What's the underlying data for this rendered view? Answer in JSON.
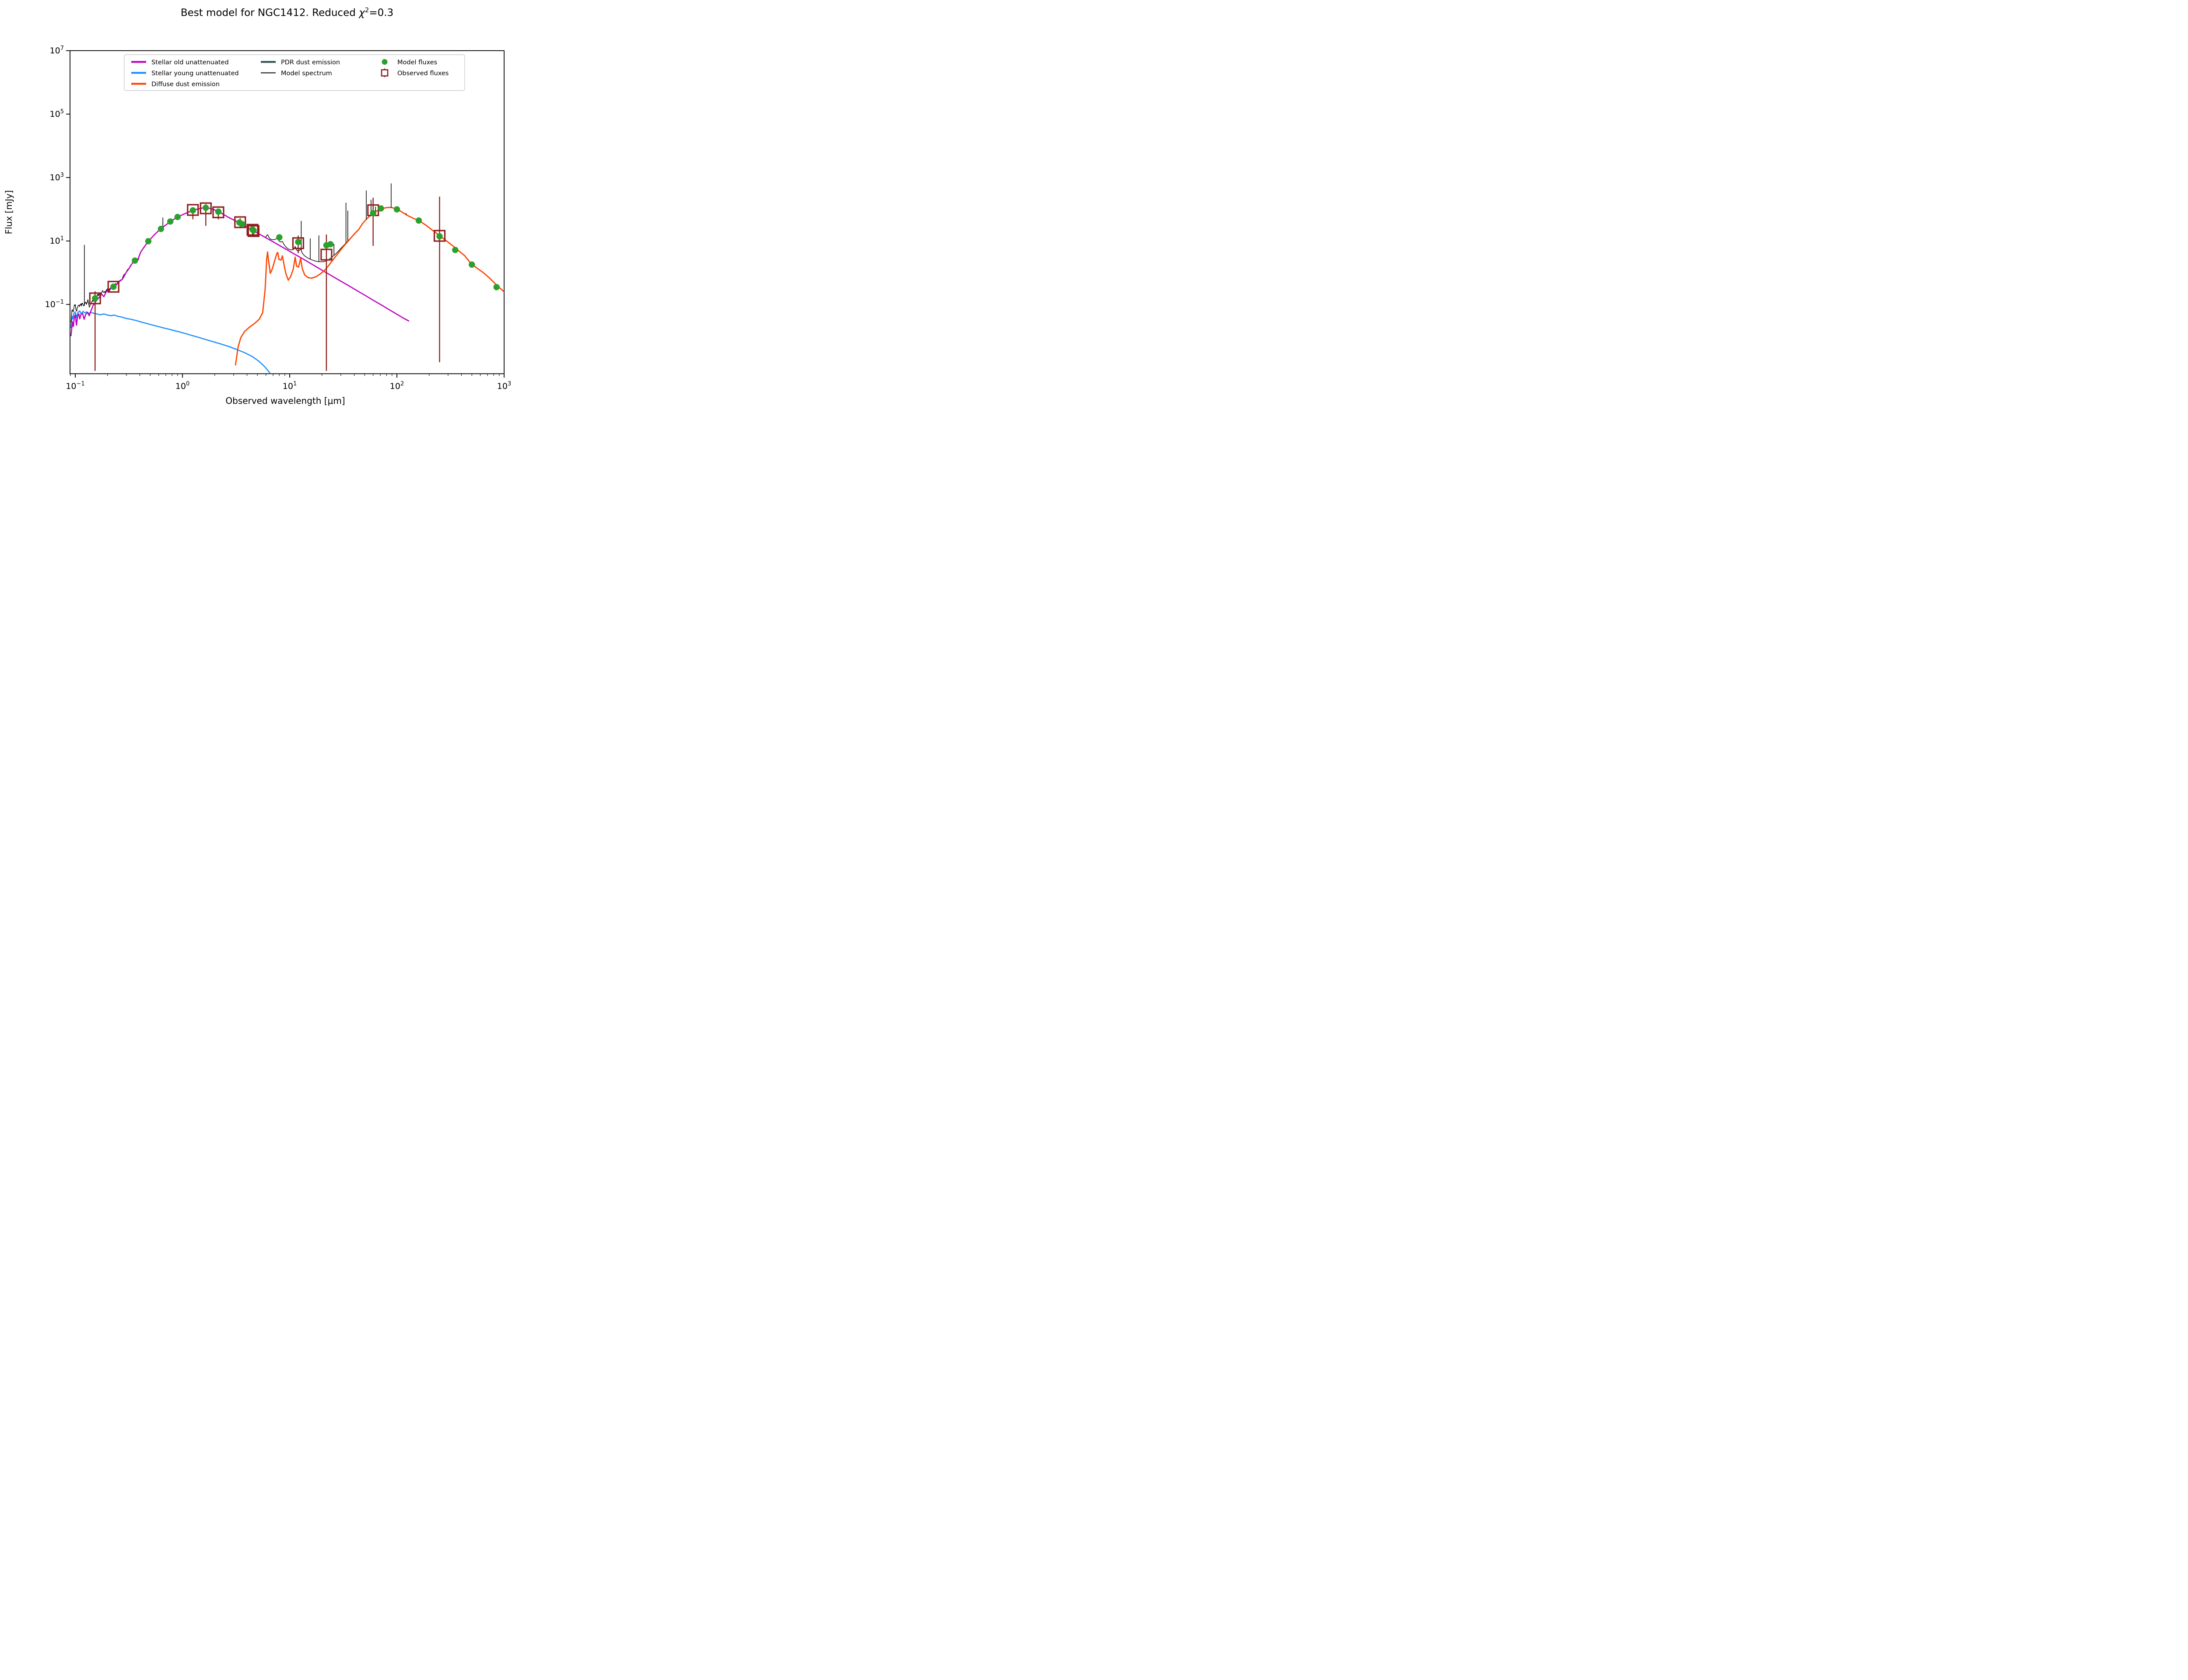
{
  "figure": {
    "title_prefix": "Best model for NGC1412. Reduced ",
    "chi": "χ",
    "chi_sup": "2",
    "title_suffix": "=0.3"
  },
  "chart_data": {
    "type": "line",
    "title": "Best model for NGC1412. Reduced χ²=0.3",
    "xlabel": "Observed wavelength [μm]",
    "ylabel": "Flux [mJy]",
    "xscale": "log",
    "yscale": "log",
    "xlim": [
      0.0893,
      1000
    ],
    "ylim": [
      0.00065,
      10000000
    ],
    "x_tick_exponents": [
      -1,
      0,
      1,
      2,
      3
    ],
    "y_tick_exponents": [
      7,
      5,
      3,
      1,
      -1
    ],
    "grid": false,
    "legend_position": "upper left inside",
    "series": [
      {
        "name": "Stellar old unattenuated",
        "color": "#bf00bf",
        "points": [
          [
            0.0912,
            0.01
          ],
          [
            0.094,
            0.028
          ],
          [
            0.096,
            0.02
          ],
          [
            0.098,
            0.04
          ],
          [
            0.1,
            0.047
          ],
          [
            0.1026,
            0.022
          ],
          [
            0.105,
            0.042
          ],
          [
            0.108,
            0.05
          ],
          [
            0.11,
            0.035
          ],
          [
            0.113,
            0.048
          ],
          [
            0.117,
            0.052
          ],
          [
            0.121,
            0.034
          ],
          [
            0.125,
            0.048
          ],
          [
            0.13,
            0.056
          ],
          [
            0.135,
            0.044
          ],
          [
            0.14,
            0.062
          ],
          [
            0.146,
            0.09
          ],
          [
            0.153,
            0.115
          ],
          [
            0.16,
            0.14
          ],
          [
            0.168,
            0.17
          ],
          [
            0.176,
            0.21
          ],
          [
            0.185,
            0.175
          ],
          [
            0.193,
            0.24
          ],
          [
            0.2,
            0.28
          ],
          [
            0.206,
            0.25
          ],
          [
            0.213,
            0.31
          ],
          [
            0.22,
            0.335
          ],
          [
            0.228,
            0.3
          ],
          [
            0.235,
            0.38
          ],
          [
            0.245,
            0.44
          ],
          [
            0.26,
            0.54
          ],
          [
            0.275,
            0.62
          ],
          [
            0.29,
            0.85
          ],
          [
            0.3,
            1.05
          ],
          [
            0.315,
            1.3
          ],
          [
            0.33,
            1.7
          ],
          [
            0.345,
            2.1
          ],
          [
            0.36,
            2.35
          ],
          [
            0.375,
            2.7
          ],
          [
            0.385,
            2.5
          ],
          [
            0.395,
            3.4
          ],
          [
            0.41,
            4.6
          ],
          [
            0.43,
            5.8
          ],
          [
            0.45,
            7.2
          ],
          [
            0.47,
            8.8
          ],
          [
            0.49,
            10.5
          ],
          [
            0.52,
            13
          ],
          [
            0.55,
            16
          ],
          [
            0.58,
            19
          ],
          [
            0.62,
            23
          ],
          [
            0.66,
            27.5
          ],
          [
            0.7,
            32
          ],
          [
            0.75,
            38
          ],
          [
            0.8,
            44
          ],
          [
            0.86,
            52
          ],
          [
            0.92,
            58
          ],
          [
            1.0,
            67
          ],
          [
            1.08,
            75
          ],
          [
            1.17,
            84
          ],
          [
            1.25,
            91
          ],
          [
            1.35,
            99
          ],
          [
            1.45,
            105
          ],
          [
            1.55,
            110
          ],
          [
            1.65,
            112
          ],
          [
            1.75,
            109
          ],
          [
            1.85,
            104
          ],
          [
            1.95,
            98
          ],
          [
            2.05,
            91
          ],
          [
            2.16,
            84
          ],
          [
            2.3,
            75
          ],
          [
            2.5,
            64
          ],
          [
            2.7,
            55
          ],
          [
            3.0,
            46
          ],
          [
            3.3,
            39
          ],
          [
            3.7,
            31
          ],
          [
            4.1,
            26
          ],
          [
            4.6,
            21
          ],
          [
            5.2,
            16.5
          ],
          [
            5.9,
            13
          ],
          [
            6.7,
            10.2
          ],
          [
            7.6,
            8.0
          ],
          [
            8.6,
            6.3
          ],
          [
            9.8,
            4.9
          ],
          [
            11,
            3.9
          ],
          [
            12.5,
            3.05
          ],
          [
            14.5,
            2.28
          ],
          [
            17,
            1.66
          ],
          [
            20,
            1.2
          ],
          [
            24,
            0.84
          ],
          [
            29,
            0.575
          ],
          [
            35,
            0.4
          ],
          [
            42,
            0.277
          ],
          [
            50,
            0.196
          ],
          [
            60,
            0.136
          ],
          [
            72,
            0.095
          ],
          [
            86,
            0.066
          ],
          [
            100,
            0.049
          ],
          [
            115,
            0.037
          ],
          [
            130,
            0.0295
          ]
        ]
      },
      {
        "name": "Stellar young unattenuated",
        "color": "#1e90ff",
        "points": [
          [
            0.0912,
            0.018
          ],
          [
            0.0935,
            0.042
          ],
          [
            0.095,
            0.035
          ],
          [
            0.097,
            0.052
          ],
          [
            0.1,
            0.058
          ],
          [
            0.1026,
            0.038
          ],
          [
            0.106,
            0.056
          ],
          [
            0.11,
            0.062
          ],
          [
            0.114,
            0.05
          ],
          [
            0.118,
            0.06
          ],
          [
            0.123,
            0.054
          ],
          [
            0.128,
            0.058
          ],
          [
            0.134,
            0.052
          ],
          [
            0.14,
            0.056
          ],
          [
            0.15,
            0.052
          ],
          [
            0.16,
            0.05
          ],
          [
            0.17,
            0.047
          ],
          [
            0.185,
            0.05
          ],
          [
            0.2,
            0.046
          ],
          [
            0.215,
            0.044
          ],
          [
            0.23,
            0.046
          ],
          [
            0.25,
            0.042
          ],
          [
            0.27,
            0.04
          ],
          [
            0.3,
            0.036
          ],
          [
            0.33,
            0.034
          ],
          [
            0.37,
            0.031
          ],
          [
            0.41,
            0.028
          ],
          [
            0.46,
            0.0252
          ],
          [
            0.52,
            0.0225
          ],
          [
            0.58,
            0.0205
          ],
          [
            0.65,
            0.0185
          ],
          [
            0.73,
            0.0168
          ],
          [
            0.82,
            0.0152
          ],
          [
            0.92,
            0.0138
          ],
          [
            1.05,
            0.0122
          ],
          [
            1.2,
            0.0107
          ],
          [
            1.4,
            0.0092
          ],
          [
            1.65,
            0.0078
          ],
          [
            1.95,
            0.0066
          ],
          [
            2.3,
            0.0056
          ],
          [
            2.7,
            0.0047
          ],
          [
            3.2,
            0.0038
          ],
          [
            3.8,
            0.003
          ],
          [
            4.5,
            0.00225
          ],
          [
            5.2,
            0.00158
          ],
          [
            5.9,
            0.00105
          ],
          [
            6.6,
            0.00066
          ],
          [
            7.3,
            0.0004
          ],
          [
            8.0,
            0.00023
          ],
          [
            8.7,
            0.00013
          ]
        ]
      },
      {
        "name": "Diffuse dust emission",
        "color": "#ff4500",
        "points": [
          [
            3.12,
            0.0012
          ],
          [
            3.3,
            0.0045
          ],
          [
            3.5,
            0.009
          ],
          [
            3.8,
            0.014
          ],
          [
            4.2,
            0.019
          ],
          [
            4.7,
            0.025
          ],
          [
            5.2,
            0.034
          ],
          [
            5.6,
            0.055
          ],
          [
            5.9,
            0.3
          ],
          [
            6.1,
            2.6
          ],
          [
            6.22,
            4.5
          ],
          [
            6.35,
            2.4
          ],
          [
            6.6,
            0.95
          ],
          [
            6.9,
            1.35
          ],
          [
            7.3,
            2.6
          ],
          [
            7.6,
            4.1
          ],
          [
            7.75,
            4.3
          ],
          [
            7.95,
            2.6
          ],
          [
            8.3,
            2.5
          ],
          [
            8.55,
            3.4
          ],
          [
            8.8,
            2.0
          ],
          [
            9.2,
            0.95
          ],
          [
            9.7,
            0.58
          ],
          [
            10.2,
            0.75
          ],
          [
            10.8,
            1.3
          ],
          [
            11.25,
            3.1
          ],
          [
            11.6,
            1.6
          ],
          [
            12.1,
            1.5
          ],
          [
            12.65,
            2.8
          ],
          [
            13.1,
            1.35
          ],
          [
            13.8,
            0.85
          ],
          [
            14.8,
            0.7
          ],
          [
            16,
            0.67
          ],
          [
            17.5,
            0.74
          ],
          [
            19,
            0.88
          ],
          [
            21,
            1.15
          ],
          [
            23,
            1.65
          ],
          [
            25,
            2.4
          ],
          [
            27.5,
            3.6
          ],
          [
            30,
            5.3
          ],
          [
            33,
            7.8
          ],
          [
            36.5,
            11.5
          ],
          [
            40,
            16.5
          ],
          [
            44,
            23
          ],
          [
            48,
            36
          ],
          [
            53,
            52
          ],
          [
            58,
            68
          ],
          [
            63,
            83
          ],
          [
            68,
            96
          ],
          [
            74,
            106
          ],
          [
            80,
            112
          ],
          [
            84,
            114
          ],
          [
            89,
            113
          ],
          [
            95,
            107
          ],
          [
            102,
            97
          ],
          [
            110,
            84
          ],
          [
            125,
            64
          ],
          [
            140,
            53
          ],
          [
            160,
            44
          ],
          [
            185,
            32
          ],
          [
            210,
            23
          ],
          [
            240,
            16.5
          ],
          [
            270,
            12
          ],
          [
            300,
            9.2
          ],
          [
            340,
            6.6
          ],
          [
            380,
            4.8
          ],
          [
            430,
            3.4
          ],
          [
            490,
            1.95
          ],
          [
            560,
            1.38
          ],
          [
            640,
            1.0
          ],
          [
            730,
            0.68
          ],
          [
            830,
            0.44
          ],
          [
            940,
            0.3
          ],
          [
            1000,
            0.25
          ]
        ]
      },
      {
        "name": "PDR dust emission",
        "color": "#2f4f4f",
        "points": []
      },
      {
        "name": "Model spectrum",
        "color": "#000000",
        "derived": "sum_of_components",
        "emission_lines": [
          [
            0.1216,
            7.5
          ],
          [
            0.6563,
            55
          ],
          [
            12.81,
            43
          ],
          [
            15.55,
            12
          ],
          [
            18.71,
            15
          ],
          [
            25.89,
            8
          ],
          [
            33.48,
            160
          ],
          [
            34.82,
            90
          ],
          [
            51.81,
            390
          ],
          [
            57.32,
            200
          ],
          [
            63.18,
            120
          ],
          [
            88.36,
            650
          ],
          [
            121.9,
            75
          ],
          [
            157.7,
            55
          ]
        ]
      }
    ],
    "model_fluxes": {
      "label": "Model fluxes",
      "color": "#2ca02c",
      "points": [
        [
          0.153,
          0.155
        ],
        [
          0.227,
          0.36
        ],
        [
          0.36,
          2.4
        ],
        [
          0.48,
          9.8
        ],
        [
          0.63,
          24
        ],
        [
          0.77,
          41
        ],
        [
          0.9,
          57
        ],
        [
          1.25,
          92
        ],
        [
          1.65,
          111
        ],
        [
          2.16,
          84
        ],
        [
          3.4,
          38
        ],
        [
          3.6,
          34
        ],
        [
          4.5,
          23
        ],
        [
          4.6,
          21.5
        ],
        [
          8.0,
          13
        ],
        [
          12,
          9.3
        ],
        [
          22,
          7.3
        ],
        [
          24,
          7.9
        ],
        [
          60,
          75
        ],
        [
          71,
          106
        ],
        [
          100,
          99
        ],
        [
          160,
          44
        ],
        [
          250,
          14
        ],
        [
          350,
          5.2
        ],
        [
          500,
          1.8
        ],
        [
          850,
          0.35
        ]
      ]
    },
    "observed_fluxes": {
      "label": "Observed fluxes",
      "color": "#8f1d1d",
      "points": [
        {
          "x": 0.153,
          "y": 0.155,
          "err_lo": 0.0008,
          "err_hi": 0.26
        },
        {
          "x": 0.227,
          "y": 0.36,
          "err_lo": 0.29,
          "err_hi": 0.44
        },
        {
          "x": 1.25,
          "y": 95,
          "err_lo": 48,
          "err_hi": 104
        },
        {
          "x": 1.65,
          "y": 107,
          "err_lo": 30,
          "err_hi": 145
        },
        {
          "x": 2.16,
          "y": 80,
          "err_lo": 48,
          "err_hi": 100
        },
        {
          "x": 3.45,
          "y": 39,
          "err_lo": 25,
          "err_hi": 52
        },
        {
          "x": 4.5,
          "y": 22.5,
          "err_lo": 16,
          "err_hi": 28
        },
        {
          "x": 4.6,
          "y": 20.5,
          "err_lo": 15,
          "err_hi": 26
        },
        {
          "x": 12,
          "y": 8.5,
          "err_lo": 4.1,
          "err_hi": 14.8
        },
        {
          "x": 22,
          "y": 3.7,
          "err_lo": 0.0008,
          "err_hi": 16
        },
        {
          "x": 60,
          "y": 93,
          "err_lo": 7,
          "err_hi": 230
        },
        {
          "x": 250,
          "y": 14.5,
          "err_lo": 0.0015,
          "err_hi": 250
        }
      ]
    }
  },
  "legend": {
    "items": [
      {
        "label": "Stellar old unattenuated",
        "key": "stellar-old",
        "swatch": "line",
        "color": "#bf00bf",
        "col": 0,
        "row": 0
      },
      {
        "label": "Stellar young unattenuated",
        "key": "stellar-young",
        "swatch": "line",
        "color": "#1e90ff",
        "col": 0,
        "row": 1
      },
      {
        "label": "Diffuse dust emission",
        "key": "diffuse-dust",
        "swatch": "line",
        "color": "#ff4500",
        "col": 0,
        "row": 2
      },
      {
        "label": "PDR dust emission",
        "key": "pdr-dust",
        "swatch": "line",
        "color": "#2f4f4f",
        "col": 1,
        "row": 0
      },
      {
        "label": "Model spectrum",
        "key": "model-spectrum",
        "swatch": "thinline",
        "color": "#000000",
        "col": 1,
        "row": 1
      },
      {
        "label": "Model fluxes",
        "key": "model-fluxes",
        "swatch": "dot",
        "color": "#2ca02c",
        "col": 2,
        "row": 0
      },
      {
        "label": "Observed fluxes",
        "key": "observed-fluxes",
        "swatch": "square",
        "color": "#8f1d1d",
        "col": 2,
        "row": 1
      }
    ]
  }
}
